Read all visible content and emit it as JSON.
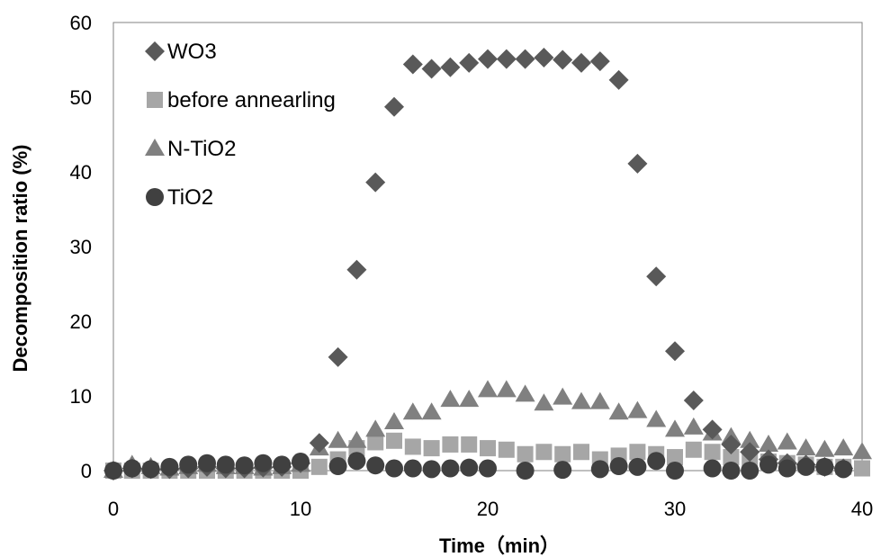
{
  "chart_data": {
    "type": "scatter",
    "title": "",
    "xlabel": "Time（min）",
    "ylabel": "Decomposition ratio (%)",
    "xlim": [
      0,
      40
    ],
    "ylim": [
      0,
      60
    ],
    "x_ticks": [
      "0",
      "10",
      "20",
      "30",
      "40"
    ],
    "y_ticks": [
      "0",
      "10",
      "20",
      "30",
      "40",
      "50",
      "60"
    ],
    "grid": false,
    "legend_position": "top-left",
    "series": [
      {
        "name": "WO3",
        "marker": "diamond",
        "color": "#595959",
        "x": [
          0,
          1,
          2,
          3,
          4,
          5,
          6,
          7,
          8,
          9,
          10,
          11,
          12,
          13,
          14,
          15,
          16,
          17,
          18,
          19,
          20,
          21,
          22,
          23,
          24,
          25,
          26,
          27,
          28,
          29,
          30,
          31,
          32,
          33,
          34,
          35,
          36,
          37,
          38,
          39
        ],
        "y": [
          0,
          0.3,
          0.2,
          0.2,
          0.3,
          0.5,
          0.3,
          0.3,
          0.4,
          0.5,
          1.0,
          3.7,
          15.2,
          26.9,
          38.6,
          48.7,
          54.4,
          53.8,
          54.0,
          54.6,
          55.1,
          55.1,
          55.1,
          55.3,
          55.0,
          54.6,
          54.8,
          52.3,
          41.1,
          26.0,
          16.0,
          9.4,
          5.5,
          3.5,
          2.5,
          1.5,
          1.0,
          0.8,
          0.5,
          0.3
        ]
      },
      {
        "name": "before annearling",
        "marker": "square",
        "color": "#a6a6a6",
        "x": [
          0,
          1,
          2,
          3,
          4,
          5,
          6,
          7,
          8,
          9,
          10,
          11,
          12,
          13,
          14,
          15,
          16,
          17,
          18,
          19,
          20,
          21,
          22,
          23,
          24,
          25,
          26,
          27,
          28,
          29,
          30,
          31,
          32,
          33,
          34,
          35,
          36,
          37,
          38,
          39,
          40
        ],
        "y": [
          0,
          0,
          0,
          0,
          0,
          0,
          0,
          0,
          0,
          0,
          0,
          0.5,
          1.5,
          3.0,
          3.8,
          4.0,
          3.2,
          3.0,
          3.5,
          3.5,
          3.0,
          2.8,
          2.2,
          2.5,
          2.2,
          2.5,
          1.5,
          2.0,
          2.5,
          2.2,
          1.8,
          2.8,
          2.5,
          1.8,
          1.5,
          1.2,
          1.0,
          0.8,
          0.5,
          0.5,
          0.3
        ]
      },
      {
        "name": "N-TiO2",
        "marker": "triangle",
        "color": "#808080",
        "x": [
          0,
          1,
          2,
          3,
          4,
          5,
          6,
          7,
          8,
          9,
          10,
          11,
          12,
          13,
          14,
          15,
          16,
          17,
          18,
          19,
          20,
          21,
          22,
          23,
          24,
          25,
          26,
          27,
          28,
          29,
          30,
          31,
          32,
          33,
          34,
          35,
          36,
          37,
          38,
          39,
          40
        ],
        "y": [
          0,
          0.8,
          0.5,
          0.3,
          0.5,
          0.8,
          0.5,
          0.5,
          0.3,
          0.5,
          0.8,
          3.0,
          4.0,
          4.0,
          5.5,
          6.5,
          7.8,
          7.8,
          9.5,
          9.5,
          10.8,
          10.8,
          10.2,
          9.0,
          9.8,
          9.2,
          9.2,
          7.8,
          8.0,
          6.8,
          5.5,
          5.8,
          5.0,
          4.5,
          4.0,
          3.5,
          3.8,
          3.0,
          2.8,
          3.0,
          2.5
        ]
      },
      {
        "name": "TiO2",
        "marker": "circle",
        "color": "#404040",
        "x": [
          0,
          1,
          2,
          3,
          4,
          5,
          6,
          7,
          8,
          9,
          10,
          12,
          13,
          14,
          15,
          16,
          17,
          18,
          19,
          20,
          22,
          24,
          26,
          27,
          28,
          29,
          30,
          32,
          33,
          34,
          35,
          36,
          37,
          38,
          39
        ],
        "y": [
          0,
          0.3,
          0.2,
          0.5,
          0.8,
          1.0,
          0.8,
          0.7,
          1.0,
          0.8,
          1.2,
          0.6,
          1.3,
          0.7,
          0.3,
          0.3,
          0.2,
          0.3,
          0.4,
          0.3,
          0.0,
          0.1,
          0.2,
          0.6,
          0.5,
          1.3,
          0.0,
          0.3,
          0.0,
          0.0,
          0.8,
          0.3,
          0.5,
          0.5,
          0.2
        ]
      }
    ]
  }
}
